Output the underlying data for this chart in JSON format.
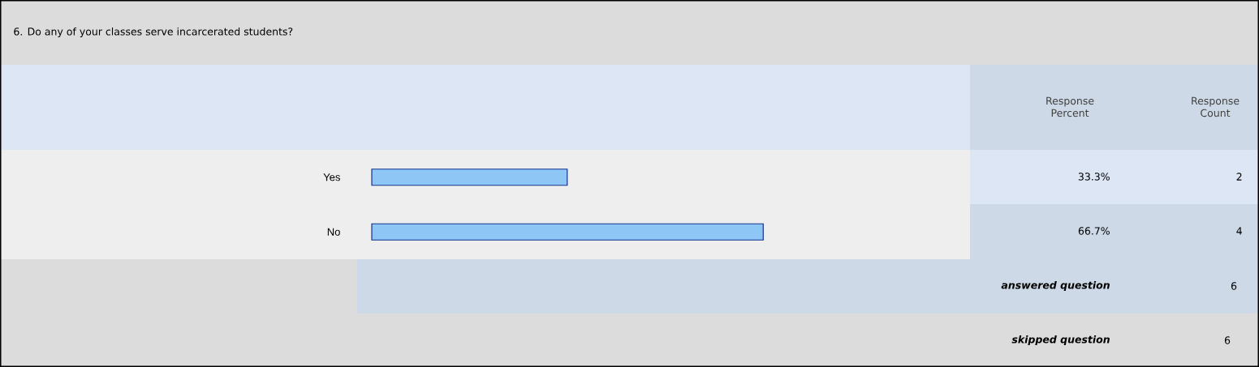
{
  "chart_data": {
    "type": "bar",
    "orientation": "horizontal",
    "title": "6. Do any of your classes serve incarcerated students?",
    "categories": [
      "Yes",
      "No"
    ],
    "values": [
      33.3,
      66.7
    ],
    "value_labels": [
      "33.3%",
      "66.7%"
    ],
    "color": "#8ec6f6",
    "tick_labels": "y",
    "annotations": [
      "Response Percent",
      "Response Count",
      "2",
      "4",
      "answered question",
      "6",
      "skipped question",
      "6"
    ]
  }
}
